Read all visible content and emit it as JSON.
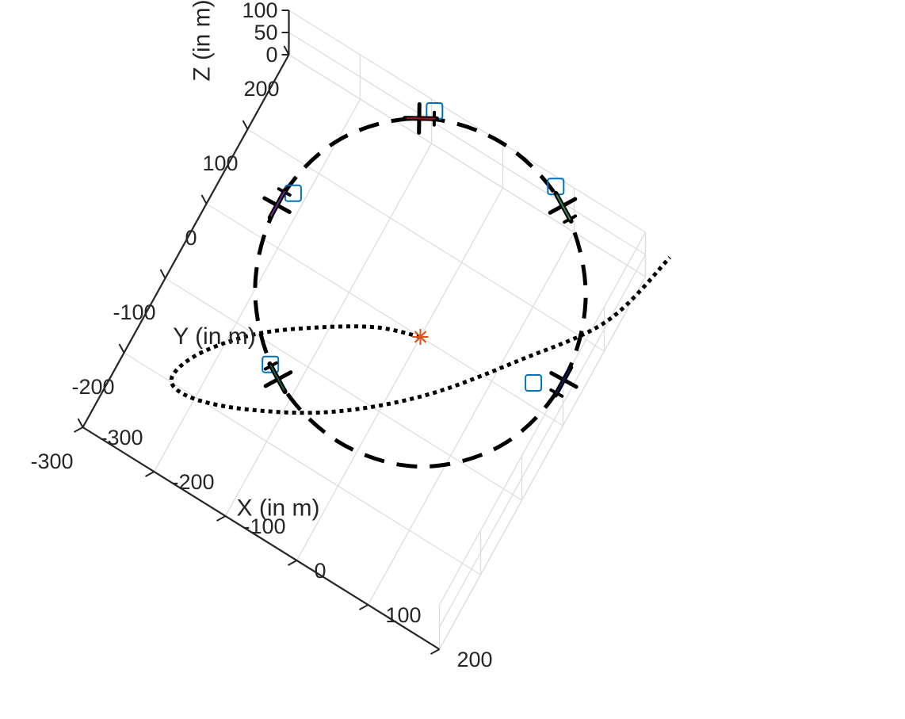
{
  "chart_data": {
    "type": "3d-trajectory",
    "title": "",
    "xlabel": "X (in m)",
    "ylabel": "Y (in m)",
    "zlabel": "Z (in m)",
    "x_ticks": [
      "-300",
      "-200",
      "-100",
      "0",
      "100",
      "200"
    ],
    "y_ticks": [
      "-300",
      "-200",
      "-100",
      "0",
      "100",
      "200"
    ],
    "z_ticks": [
      "0",
      "50",
      "100"
    ],
    "xlim": [
      -300,
      200
    ],
    "ylim": [
      -300,
      200
    ],
    "zlim": [
      0,
      100
    ],
    "grid": true,
    "series": [
      {
        "style": "dashed",
        "color": "#000000",
        "x": [
          200,
          174,
          100,
          0,
          -100,
          -174,
          -200,
          -174,
          -100,
          0,
          100,
          174,
          200
        ],
        "y": [
          0,
          100,
          174,
          200,
          174,
          100,
          0,
          -100,
          -174,
          -200,
          -174,
          -100,
          0
        ],
        "z": [
          100,
          100,
          100,
          100,
          100,
          100,
          100,
          100,
          100,
          100,
          100,
          100,
          100
        ]
      },
      {
        "style": "dotted",
        "color": "#000000",
        "x": [
          0,
          -50,
          -110,
          -170,
          -215,
          -225,
          -190,
          -120,
          -30,
          60,
          140,
          210,
          240
        ],
        "y": [
          0,
          -20,
          -60,
          -110,
          -170,
          -215,
          -225,
          -205,
          -160,
          -90,
          0,
          90,
          190
        ],
        "z": [
          0,
          5,
          12,
          20,
          30,
          40,
          50,
          60,
          70,
          80,
          88,
          95,
          100
        ]
      }
    ],
    "start_point": {
      "x": 0,
      "y": 0,
      "z": 0,
      "color": "#D95319",
      "marker": "asterisk"
    },
    "aircraft": [
      {
        "x": 200,
        "y": 0,
        "z": 100,
        "color": "#0f1c5c"
      },
      {
        "x": 100,
        "y": 174,
        "z": 100,
        "color": "#2e8b57"
      },
      {
        "x": -100,
        "y": 174,
        "z": 100,
        "color": "#a01a2a"
      },
      {
        "x": -200,
        "y": 0,
        "z": 100,
        "color": "#6b2a8c"
      },
      {
        "x": -100,
        "y": -174,
        "z": 100,
        "color": "#1a5c50"
      }
    ],
    "markers": [
      {
        "x": 170,
        "y": -20,
        "z": 100,
        "color": "#0072BD",
        "shape": "square"
      },
      {
        "x": 80,
        "y": 190,
        "z": 100,
        "color": "#0072BD",
        "shape": "square"
      },
      {
        "x": -90,
        "y": 190,
        "z": 100,
        "color": "#0072BD",
        "shape": "square"
      },
      {
        "x": -190,
        "y": 20,
        "z": 100,
        "color": "#0072BD",
        "shape": "square"
      },
      {
        "x": -115,
        "y": -165,
        "z": 100,
        "color": "#0072BD",
        "shape": "square"
      }
    ]
  }
}
